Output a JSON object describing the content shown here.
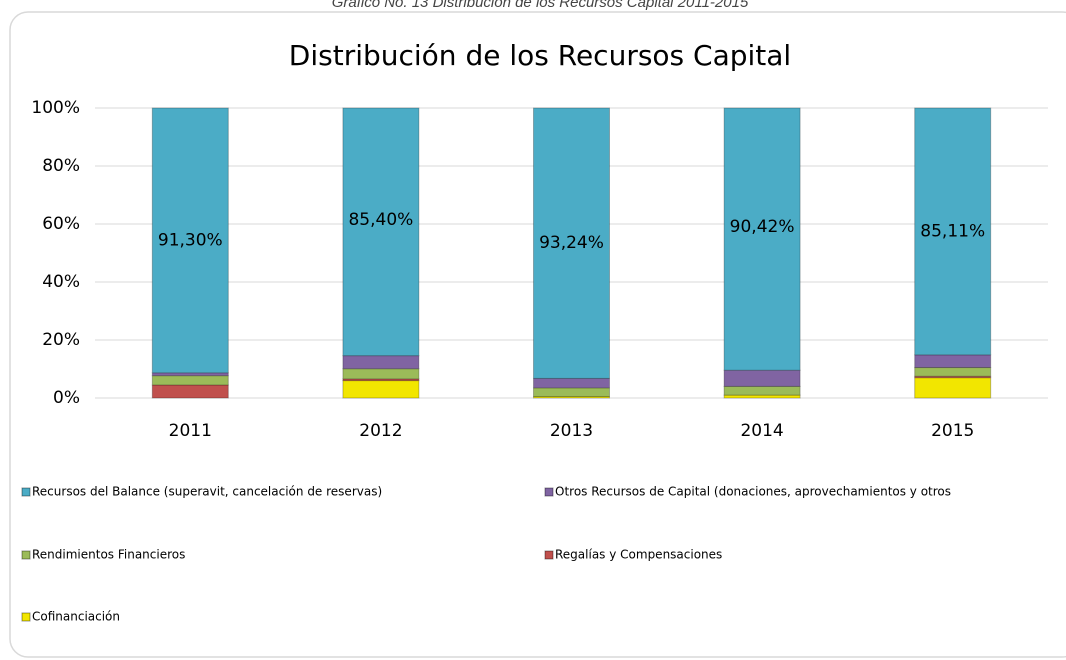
{
  "caption": "Gráfico No. 13 Distribución de los Recursos Capital 2011-2015",
  "chart_data": {
    "type": "stacked_bar_percent",
    "title": "Distribución de los Recursos Capital",
    "categories": [
      "2011",
      "2012",
      "2013",
      "2014",
      "2015"
    ],
    "series": [
      {
        "name": "Recursos del Balance (superavit, cancelación de reservas)",
        "color": "#4bacc6",
        "values": [
          91.3,
          85.4,
          93.24,
          90.42,
          85.11
        ],
        "value_labels": [
          "91,30%",
          "85,40%",
          "93,24%",
          "90,42%",
          "85,11%"
        ]
      },
      {
        "name": "Otros Recursos de Capital (donaciones, aprovechamientos y otros",
        "color": "#8064a2",
        "values": [
          1.0,
          4.5,
          3.26,
          5.58,
          4.39
        ]
      },
      {
        "name": "Rendimientos Financieros",
        "color": "#9bbb59",
        "values": [
          3.2,
          3.5,
          3.0,
          3.0,
          3.0
        ]
      },
      {
        "name": "Regalías y Compensaciones",
        "color": "#c0504d",
        "values": [
          4.5,
          0.6,
          0,
          0,
          0.5
        ]
      },
      {
        "name": "Cofinanciación",
        "color": "#f2e600",
        "values": [
          0,
          6.0,
          0.5,
          1.0,
          7.0
        ]
      }
    ],
    "ylim": [
      0,
      100
    ],
    "yticks": [
      {
        "value": 0,
        "label": "0%"
      },
      {
        "value": 20,
        "label": "20%"
      },
      {
        "value": 40,
        "label": "40%"
      },
      {
        "value": 60,
        "label": "60%"
      },
      {
        "value": 80,
        "label": "80%"
      },
      {
        "value": 100,
        "label": "100%"
      }
    ],
    "grid": true
  }
}
